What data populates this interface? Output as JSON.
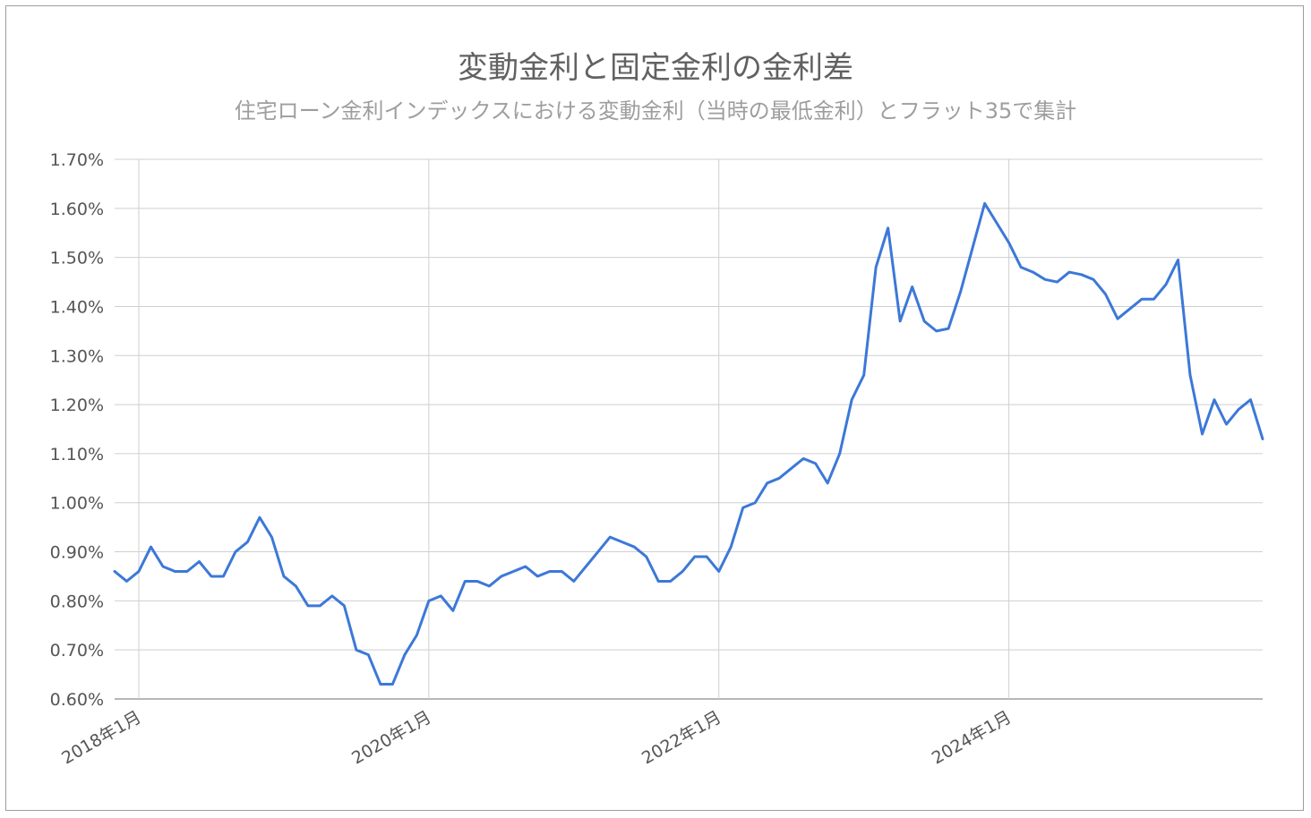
{
  "chart_data": {
    "type": "line",
    "title": "変動金利と固定金利の金利差",
    "subtitle": "住宅ローン金利インデックスにおける変動金利（当時の最低金利）とフラット35で集計",
    "xlabel": "",
    "ylabel": "",
    "ylim": [
      0.6,
      1.7
    ],
    "y_ticks": [
      "0.60%",
      "0.70%",
      "0.80%",
      "0.90%",
      "1.00%",
      "1.10%",
      "1.20%",
      "1.30%",
      "1.40%",
      "1.50%",
      "1.60%",
      "1.70%"
    ],
    "y_tick_values": [
      0.6,
      0.7,
      0.8,
      0.9,
      1.0,
      1.1,
      1.2,
      1.3,
      1.4,
      1.5,
      1.6,
      1.7
    ],
    "x_ticks": [
      {
        "label": "2018年1月",
        "index": 2
      },
      {
        "label": "2020年1月",
        "index": 26
      },
      {
        "label": "2022年1月",
        "index": 50
      },
      {
        "label": "2024年1月",
        "index": 74
      }
    ],
    "grid": true,
    "line_color": "#3c78d8",
    "series": [
      {
        "values": [
          0.86,
          0.84,
          0.86,
          0.91,
          0.87,
          0.86,
          0.86,
          0.88,
          0.85,
          0.85,
          0.9,
          0.92,
          0.97,
          0.93,
          0.85,
          0.83,
          0.79,
          0.79,
          0.81,
          0.79,
          0.7,
          0.69,
          0.63,
          0.63,
          0.69,
          0.73,
          0.8,
          0.81,
          0.78,
          0.84,
          0.84,
          0.83,
          0.85,
          0.86,
          0.87,
          0.85,
          0.86,
          0.86,
          0.84,
          0.87,
          0.9,
          0.93,
          0.92,
          0.91,
          0.89,
          0.84,
          0.84,
          0.86,
          0.89,
          0.89,
          0.86,
          0.91,
          0.99,
          1.0,
          1.04,
          1.05,
          1.07,
          1.09,
          1.08,
          1.04,
          1.1,
          1.21,
          1.26,
          1.48,
          1.56,
          1.37,
          1.44,
          1.37,
          1.35,
          1.355,
          1.43,
          1.52,
          1.61,
          1.57,
          1.53,
          1.48,
          1.47,
          1.455,
          1.45,
          1.47,
          1.465,
          1.455,
          1.425,
          1.375,
          1.395,
          1.415,
          1.415,
          1.445,
          1.495,
          1.26,
          1.14,
          1.21,
          1.16,
          1.19,
          1.21,
          1.13
        ]
      }
    ]
  }
}
